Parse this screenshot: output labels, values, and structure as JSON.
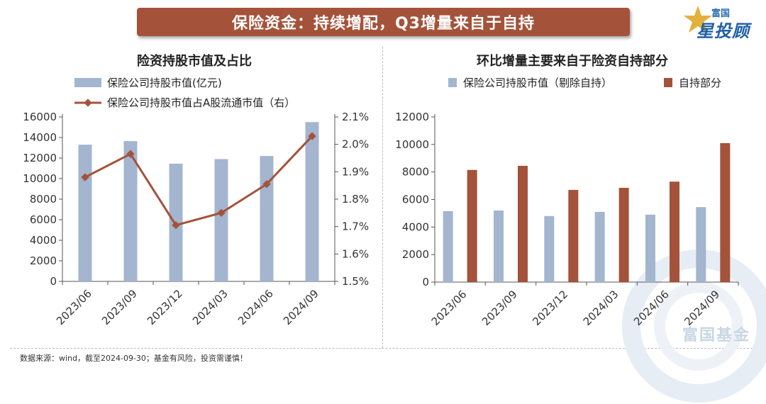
{
  "header": {
    "title": "保险资金：持续增配，Q3增量来自于自持"
  },
  "brand": {
    "top": "富国",
    "main": "星投顾"
  },
  "colors": {
    "banner": "#a4523a",
    "bar_blue": "#a3b5cf",
    "bar_brown": "#a4523a",
    "line": "#a4523a"
  },
  "chart_data": [
    {
      "type": "bar",
      "title": "险资持股市值及占比",
      "categories": [
        "2023/06",
        "2023/09",
        "2023/12",
        "2024/03",
        "2024/06",
        "2024/09"
      ],
      "series": [
        {
          "name": "保险公司持股市值(亿元)",
          "type": "bar",
          "axis": "left",
          "values": [
            13300,
            13650,
            11450,
            11900,
            12200,
            15500
          ]
        },
        {
          "name": "保险公司持股市值占A股流通市值（右）",
          "type": "line",
          "axis": "right",
          "values": [
            1.88,
            1.965,
            1.705,
            1.75,
            1.855,
            2.03
          ]
        }
      ],
      "y_left": {
        "min": 0,
        "max": 16000,
        "ticks": [
          "0",
          "2000",
          "4000",
          "6000",
          "8000",
          "10000",
          "12000",
          "14000",
          "16000"
        ]
      },
      "y_right": {
        "min": 1.5,
        "max": 2.1,
        "ticks": [
          "1.5%",
          "1.6%",
          "1.7%",
          "1.8%",
          "1.9%",
          "2.0%",
          "2.1%"
        ]
      },
      "legend": "top",
      "grid": false
    },
    {
      "type": "bar",
      "title": "环比增量主要来自于险资自持部分",
      "categories": [
        "2023/06",
        "2023/09",
        "2023/12",
        "2024/03",
        "2024/06",
        "2024/09"
      ],
      "series": [
        {
          "name": "保险公司持股市值（剔除自持）",
          "values": [
            5150,
            5200,
            4800,
            5100,
            4900,
            5450
          ]
        },
        {
          "name": "自持部分",
          "values": [
            8150,
            8450,
            6700,
            6850,
            7300,
            10100
          ]
        }
      ],
      "y": {
        "min": 0,
        "max": 12000,
        "ticks": [
          "0",
          "2000",
          "4000",
          "6000",
          "8000",
          "10000",
          "12000"
        ]
      },
      "legend": "top",
      "grid": false
    }
  ],
  "footer": {
    "source": "数据来源：wind，截至2024-09-30；基金有风险，投资需谨慎！"
  },
  "watermark": {
    "text": "富国基金"
  }
}
